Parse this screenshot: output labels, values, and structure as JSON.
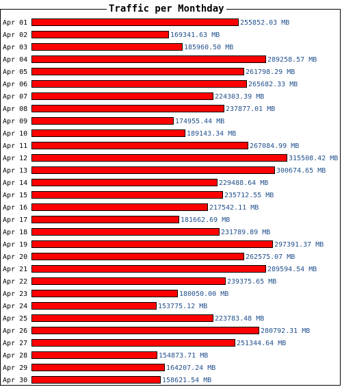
{
  "chart_data": {
    "type": "bar",
    "orientation": "horizontal",
    "title": "Traffic per Monthday",
    "unit": "MB",
    "bar_color": "#ff0000",
    "bar_border_color": "#000000",
    "value_label_color": "#1f4e8c",
    "grid": false,
    "categories": [
      "Apr 01",
      "Apr 02",
      "Apr 03",
      "Apr 04",
      "Apr 05",
      "Apr 06",
      "Apr 07",
      "Apr 08",
      "Apr 09",
      "Apr 10",
      "Apr 11",
      "Apr 12",
      "Apr 13",
      "Apr 14",
      "Apr 15",
      "Apr 16",
      "Apr 17",
      "Apr 18",
      "Apr 19",
      "Apr 20",
      "Apr 21",
      "Apr 22",
      "Apr 23",
      "Apr 24",
      "Apr 25",
      "Apr 26",
      "Apr 27",
      "Apr 28",
      "Apr 29",
      "Apr 30"
    ],
    "values": [
      255852.03,
      169341.63,
      185960.5,
      289258.57,
      261798.29,
      265682.33,
      224303.39,
      237877.01,
      174955.44,
      189143.34,
      267084.99,
      315508.42,
      300674.65,
      229488.64,
      235712.55,
      217542.11,
      181662.69,
      231789.89,
      297391.37,
      262575.07,
      289594.54,
      239375.65,
      180050.0,
      153775.12,
      223783.48,
      280792.31,
      251344.64,
      154873.71,
      164207.24,
      158621.54
    ],
    "value_labels": [
      "255852.03 MB",
      "169341.63 MB",
      "185960.50 MB",
      "289258.57 MB",
      "261798.29 MB",
      "265682.33 MB",
      "224303.39 MB",
      "237877.01 MB",
      "174955.44 MB",
      "189143.34 MB",
      "267084.99 MB",
      "315508.42 MB",
      "300674.65 MB",
      "229488.64 MB",
      "235712.55 MB",
      "217542.11 MB",
      "181662.69 MB",
      "231789.89 MB",
      "297391.37 MB",
      "262575.07 MB",
      "289594.54 MB",
      "239375.65 MB",
      "180050.00 MB",
      "153775.12 MB",
      "223783.48 MB",
      "280792.31 MB",
      "251344.64 MB",
      "154873.71 MB",
      "164207.24 MB",
      "158621.54 MB"
    ]
  }
}
